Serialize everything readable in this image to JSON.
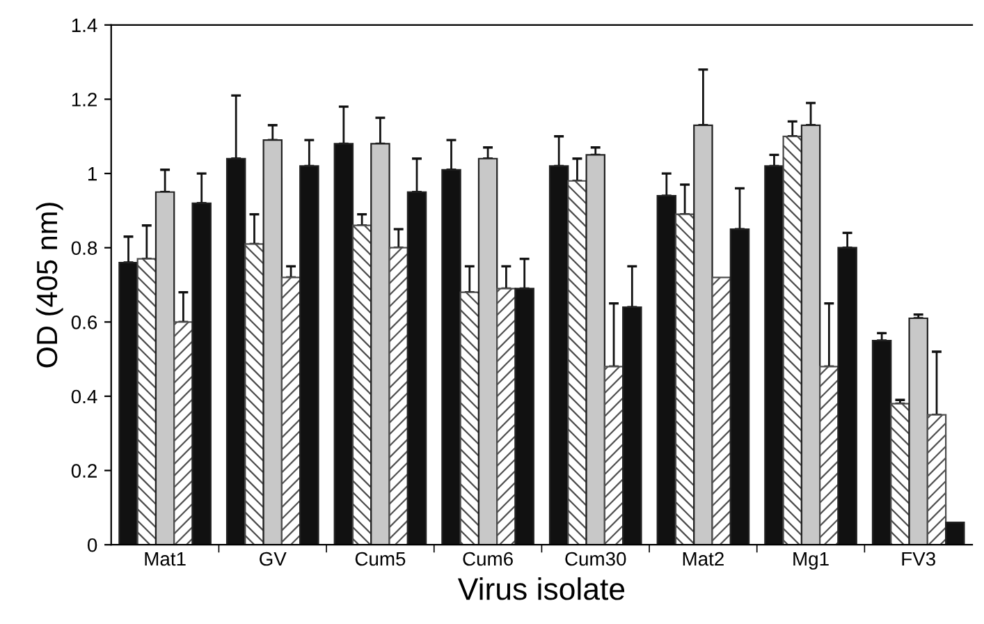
{
  "chart_data": {
    "type": "bar",
    "xlabel": "Virus isolate",
    "ylabel": "OD (405 nm)",
    "categories": [
      "Mat1",
      "GV",
      "Cum5",
      "Cum6",
      "Cum30",
      "Mat2",
      "Mg1",
      "FV3"
    ],
    "series": [
      {
        "color": "#111111",
        "values": [
          0.76,
          1.04,
          1.08,
          1.01,
          1.02,
          0.94,
          1.02,
          0.55
        ],
        "errors": [
          [
            0.76,
            0.83
          ],
          [
            1.04,
            1.21
          ],
          [
            1.08,
            1.18
          ],
          [
            1.01,
            1.09
          ],
          [
            1.02,
            1.1
          ],
          [
            0.94,
            1.0
          ],
          [
            1.02,
            1.05
          ],
          [
            0.55,
            0.57
          ]
        ]
      },
      {
        "color": "#4a4a4a",
        "values": [
          0.77,
          0.81,
          0.86,
          0.68,
          0.98,
          0.89,
          1.1,
          0.38
        ],
        "errors": [
          [
            0.77,
            0.86
          ],
          [
            0.81,
            0.89
          ],
          [
            0.86,
            0.89
          ],
          [
            0.68,
            0.75
          ],
          [
            0.98,
            1.04
          ],
          [
            0.89,
            0.97
          ],
          [
            1.1,
            1.14
          ],
          [
            0.38,
            0.39
          ]
        ]
      },
      {
        "color": "#c8c8c8",
        "values": [
          0.95,
          1.09,
          1.08,
          1.04,
          1.05,
          1.13,
          1.13,
          0.61
        ],
        "errors": [
          [
            0.95,
            1.01
          ],
          [
            1.09,
            1.13
          ],
          [
            1.08,
            1.15
          ],
          [
            1.04,
            1.07
          ],
          [
            1.05,
            1.07
          ],
          [
            1.13,
            1.28
          ],
          [
            1.13,
            1.19
          ],
          [
            0.61,
            0.62
          ]
        ]
      },
      {
        "color": "#505050",
        "values": [
          0.6,
          0.72,
          0.8,
          0.69,
          0.48,
          0.72,
          0.48,
          0.35
        ],
        "errors": [
          [
            0.6,
            0.68
          ],
          [
            0.72,
            0.75
          ],
          [
            0.8,
            0.85
          ],
          [
            0.69,
            0.75
          ],
          [
            0.48,
            0.65
          ],
          null,
          [
            0.48,
            0.65
          ],
          [
            0.35,
            0.52
          ]
        ]
      },
      {
        "color": "#111111",
        "values": [
          0.92,
          1.02,
          0.95,
          0.69,
          0.64,
          0.85,
          0.8,
          0.06
        ],
        "errors": [
          [
            0.92,
            1.0
          ],
          [
            1.02,
            1.09
          ],
          [
            0.95,
            1.04
          ],
          [
            0.69,
            0.77
          ],
          [
            0.64,
            0.75
          ],
          [
            0.85,
            0.96
          ],
          [
            0.8,
            0.84
          ],
          null
        ]
      }
    ],
    "ylim": [
      0,
      1.4
    ],
    "yticks": [
      0,
      0.2,
      0.4,
      0.6,
      0.8,
      1,
      1.2,
      1.4
    ],
    "grid": false
  }
}
